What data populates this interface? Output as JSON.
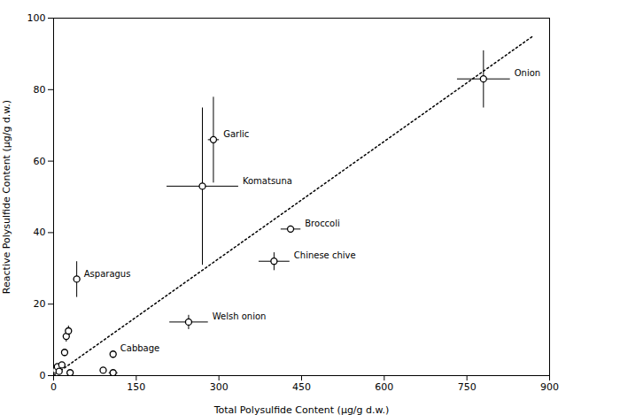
{
  "chart_data": {
    "type": "scatter",
    "xlabel": "Total Polysulfide Content (μg/g d.w.)",
    "ylabel": "Reactive Polysulfide Content (μg/g d.w.)",
    "xlim": [
      0,
      900
    ],
    "ylim": [
      0,
      100
    ],
    "xticks": [
      0,
      150,
      300,
      450,
      600,
      750,
      900
    ],
    "yticks": [
      0,
      20,
      40,
      60,
      80,
      100
    ],
    "grid": false,
    "marker": "circle",
    "points": [
      {
        "label": "Onion",
        "x": 780,
        "y": 83,
        "xerr": 48,
        "yerr": 8
      },
      {
        "label": "Garlic",
        "x": 290,
        "y": 66,
        "xerr": 10,
        "yerr": 12
      },
      {
        "label": "Komatsuna",
        "x": 270,
        "y": 53,
        "xerr": 65,
        "yerr": 22
      },
      {
        "label": "Broccoli",
        "x": 430,
        "y": 41,
        "xerr": 18,
        "yerr": 1
      },
      {
        "label": "Chinese chive",
        "x": 400,
        "y": 32,
        "xerr": 28,
        "yerr": 2.5
      },
      {
        "label": "Asparagus",
        "x": 42,
        "y": 27,
        "xerr": 5,
        "yerr": 5
      },
      {
        "label": "Welsh onion",
        "x": 245,
        "y": 15,
        "xerr": 35,
        "yerr": 2
      },
      {
        "label": "Cabbage",
        "x": 108,
        "y": 6,
        "xerr": 5,
        "yerr": 1
      },
      {
        "label": null,
        "x": 4,
        "y": 1.5,
        "xerr": 1,
        "yerr": 0.4
      },
      {
        "label": null,
        "x": 7,
        "y": 2.5,
        "xerr": 1,
        "yerr": 0.5
      },
      {
        "label": null,
        "x": 10,
        "y": 1.2,
        "xerr": 1,
        "yerr": 0.3
      },
      {
        "label": null,
        "x": 15,
        "y": 3.0,
        "xerr": 2,
        "yerr": 0.5
      },
      {
        "label": null,
        "x": 20,
        "y": 6.5,
        "xerr": 2,
        "yerr": 1.0
      },
      {
        "label": null,
        "x": 23,
        "y": 11,
        "xerr": 2,
        "yerr": 1.5
      },
      {
        "label": null,
        "x": 27,
        "y": 12.5,
        "xerr": 3,
        "yerr": 1.5
      },
      {
        "label": null,
        "x": 30,
        "y": 0.8,
        "xerr": 2,
        "yerr": 0.2
      },
      {
        "label": null,
        "x": 90,
        "y": 1.5,
        "xerr": 5,
        "yerr": 0.3
      },
      {
        "label": null,
        "x": 108,
        "y": 0.8,
        "xerr": 8,
        "yerr": 0.2
      }
    ],
    "trendline": {
      "x": [
        0,
        870
      ],
      "y": [
        0,
        95
      ],
      "line_style": "dotted"
    }
  }
}
